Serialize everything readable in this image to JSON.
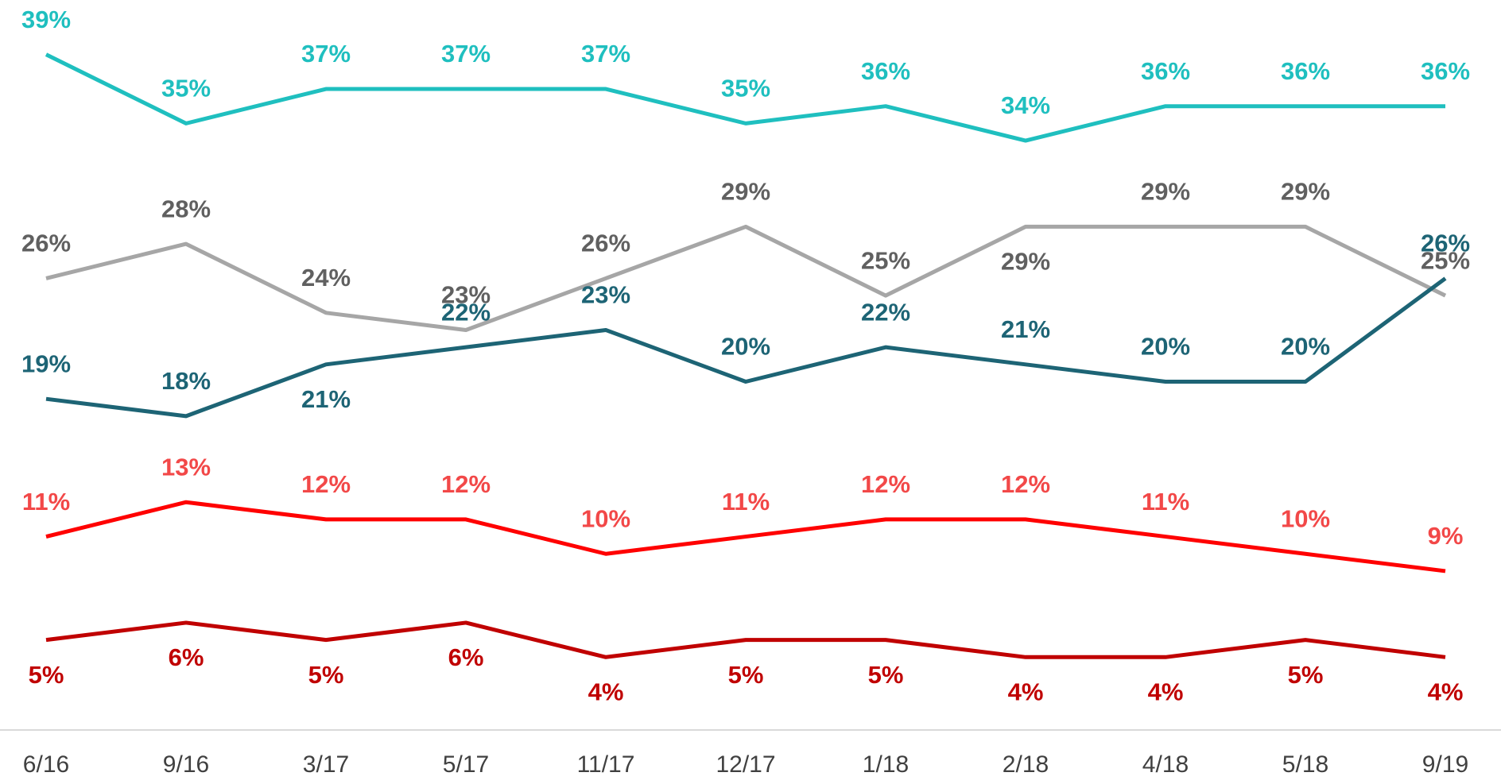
{
  "chart_data": {
    "type": "line",
    "categories": [
      "6/16",
      "9/16",
      "3/17",
      "5/17",
      "11/17",
      "12/17",
      "1/18",
      "2/18",
      "4/18",
      "5/18",
      "9/19"
    ],
    "ylim": [
      0,
      40
    ],
    "series": [
      {
        "color": "#1fbfbf",
        "label_color": "#1fbfbf",
        "values": [
          39,
          35,
          37,
          37,
          37,
          35,
          36,
          34,
          36,
          36,
          36
        ],
        "value_labels": [
          "39%",
          "35%",
          "37%",
          "37%",
          "37%",
          "35%",
          "36%",
          "34%",
          "36%",
          "36%",
          "36%"
        ]
      },
      {
        "color": "#a6a6a6",
        "label_color": "#606060",
        "values": [
          26,
          28,
          24,
          23,
          26,
          29,
          25,
          29,
          29,
          29,
          25
        ],
        "value_labels": [
          "26%",
          "28%",
          "24%",
          "23%",
          "26%",
          "29%",
          "25%",
          "29%",
          "29%",
          "29%",
          "25%"
        ]
      },
      {
        "color": "#1d6475",
        "label_color": "#1d6475",
        "values": [
          19,
          18,
          21,
          22,
          23,
          20,
          22,
          21,
          20,
          20,
          26
        ],
        "value_labels": [
          "19%",
          "18%",
          "21%",
          "22%",
          "23%",
          "20%",
          "22%",
          "21%",
          "20%",
          "20%",
          "26%"
        ]
      },
      {
        "color": "#ff0000",
        "label_color": "#f24848",
        "values": [
          11,
          13,
          12,
          12,
          10,
          11,
          12,
          12,
          11,
          10,
          9
        ],
        "value_labels": [
          "11%",
          "13%",
          "12%",
          "12%",
          "10%",
          "11%",
          "12%",
          "12%",
          "11%",
          "10%",
          "9%"
        ]
      },
      {
        "color": "#c00000",
        "label_color": "#c00000",
        "values": [
          5,
          6,
          5,
          6,
          4,
          5,
          5,
          4,
          4,
          5,
          4
        ],
        "value_labels": [
          "5%",
          "6%",
          "5%",
          "6%",
          "4%",
          "5%",
          "5%",
          "4%",
          "4%",
          "5%",
          "4%"
        ]
      }
    ]
  }
}
